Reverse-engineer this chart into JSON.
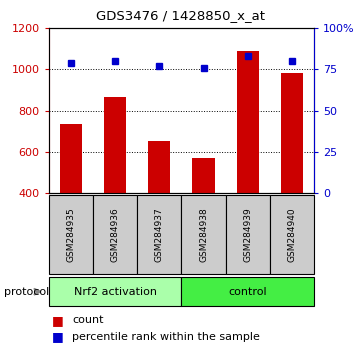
{
  "title": "GDS3476 / 1428850_x_at",
  "samples": [
    "GSM284935",
    "GSM284936",
    "GSM284937",
    "GSM284938",
    "GSM284939",
    "GSM284940"
  ],
  "bar_values": [
    737,
    868,
    653,
    572,
    1090,
    985
  ],
  "percentile_values": [
    79,
    80,
    77,
    76,
    83,
    80
  ],
  "bar_color": "#cc0000",
  "marker_color": "#0000cc",
  "ylim_left": [
    400,
    1200
  ],
  "ylim_right": [
    0,
    100
  ],
  "yticks_left": [
    400,
    600,
    800,
    1000,
    1200
  ],
  "yticks_right": [
    0,
    25,
    50,
    75,
    100
  ],
  "groups": [
    {
      "label": "Nrf2 activation",
      "indices": [
        0,
        1,
        2
      ],
      "color": "#aaffaa"
    },
    {
      "label": "control",
      "indices": [
        3,
        4,
        5
      ],
      "color": "#44ee44"
    }
  ],
  "protocol_label": "protocol",
  "legend_count_label": "count",
  "legend_percentile_label": "percentile rank within the sample",
  "background_color": "#ffffff",
  "bar_width": 0.5,
  "sample_box_color": "#cccccc"
}
